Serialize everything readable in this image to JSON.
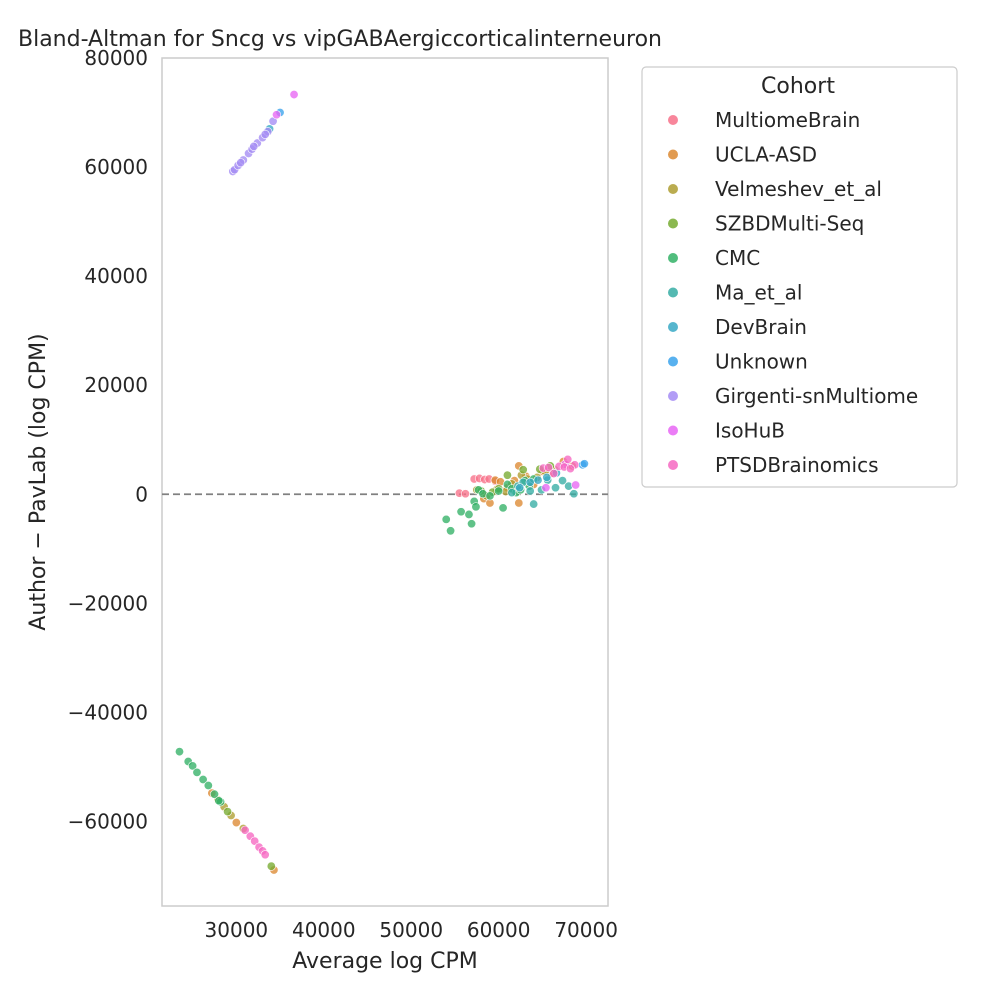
{
  "chart_data": {
    "type": "scatter",
    "title": "Bland-Altman for Sncg vs vipGABAergiccorticalinterneuron",
    "xlabel": "Average log CPM",
    "ylabel": "Author − PavLab (log CPM)",
    "xlim": [
      21500,
      72500
    ],
    "ylim": [
      -75500,
      80000
    ],
    "xticks": [
      30000,
      40000,
      50000,
      60000,
      70000
    ],
    "yticks": [
      -60000,
      -40000,
      -20000,
      0,
      20000,
      40000,
      60000,
      80000
    ],
    "xtick_labels": [
      "30000",
      "40000",
      "50000",
      "60000",
      "70000"
    ],
    "ytick_labels": [
      "−60000",
      "−40000",
      "−20000",
      "0",
      "20000",
      "40000",
      "60000",
      "80000"
    ],
    "reference_line": {
      "y": 0,
      "style": "dashed",
      "color": "#808080"
    },
    "grid": false,
    "legend": {
      "title": "Cohort",
      "placement": "outside-right"
    },
    "series": [
      {
        "name": "MultiomeBrain",
        "color": "#f77189",
        "points": [
          [
            55500,
            200
          ],
          [
            56200,
            100
          ],
          [
            57200,
            2800
          ],
          [
            57800,
            2900
          ],
          [
            58400,
            2700
          ],
          [
            58900,
            2800
          ],
          [
            59600,
            2400
          ],
          [
            58200,
            200
          ]
        ]
      },
      {
        "name": "UCLA-ASD",
        "color": "#dc8932",
        "points": [
          [
            58300,
            -800
          ],
          [
            59000,
            -1600
          ],
          [
            59600,
            2600
          ],
          [
            60200,
            2300
          ],
          [
            61000,
            1200
          ],
          [
            61800,
            2500
          ],
          [
            62300,
            5200
          ],
          [
            62300,
            -1600
          ],
          [
            63100,
            3300
          ],
          [
            64000,
            1800
          ],
          [
            65000,
            4200
          ],
          [
            66000,
            3800
          ],
          [
            67400,
            6000
          ],
          [
            68400,
            5200
          ],
          [
            27200,
            -54800
          ],
          [
            30000,
            -60200
          ],
          [
            34300,
            -68900
          ]
        ]
      },
      {
        "name": "Velmeshev_et_al",
        "color": "#ae9d31",
        "points": [
          [
            57500,
            800
          ],
          [
            58600,
            -300
          ],
          [
            59800,
            900
          ],
          [
            60800,
            500
          ],
          [
            61500,
            1900
          ],
          [
            62600,
            3500
          ],
          [
            63300,
            2800
          ],
          [
            64400,
            3100
          ],
          [
            65300,
            4200
          ],
          [
            66400,
            4500
          ],
          [
            27900,
            -56000
          ],
          [
            28600,
            -57300
          ],
          [
            29400,
            -58900
          ],
          [
            30800,
            -61300
          ]
        ]
      },
      {
        "name": "SZBDMulti-Seq",
        "color": "#77ab31",
        "points": [
          [
            58000,
            600
          ],
          [
            59300,
            400
          ],
          [
            60000,
            1000
          ],
          [
            61000,
            3500
          ],
          [
            61800,
            600
          ],
          [
            62800,
            4500
          ],
          [
            63500,
            2000
          ],
          [
            64700,
            4600
          ],
          [
            65900,
            5200
          ],
          [
            29000,
            -58200
          ],
          [
            34000,
            -68200
          ]
        ]
      },
      {
        "name": "CMC",
        "color": "#33b166",
        "points": [
          [
            54000,
            -4600
          ],
          [
            54500,
            -6700
          ],
          [
            55700,
            -3200
          ],
          [
            56600,
            -3700
          ],
          [
            56900,
            -5400
          ],
          [
            57200,
            -1300
          ],
          [
            57400,
            -2300
          ],
          [
            57700,
            800
          ],
          [
            58200,
            100
          ],
          [
            59000,
            -300
          ],
          [
            60000,
            600
          ],
          [
            60500,
            -2500
          ],
          [
            61000,
            1800
          ],
          [
            61500,
            1000
          ],
          [
            62000,
            300
          ],
          [
            62500,
            800
          ],
          [
            63000,
            2500
          ],
          [
            63500,
            1500
          ],
          [
            64000,
            2800
          ],
          [
            23500,
            -47200
          ],
          [
            24500,
            -49000
          ],
          [
            25000,
            -49800
          ],
          [
            25500,
            -51000
          ],
          [
            26200,
            -52300
          ],
          [
            26800,
            -53400
          ],
          [
            27500,
            -55000
          ],
          [
            28200,
            -56400
          ],
          [
            28000,
            -56200
          ]
        ]
      },
      {
        "name": "Ma_et_al",
        "color": "#36ada4",
        "points": [
          [
            61500,
            300
          ],
          [
            62200,
            1500
          ],
          [
            62800,
            2200
          ],
          [
            63600,
            600
          ],
          [
            64000,
            -1800
          ],
          [
            64900,
            800
          ],
          [
            65600,
            2600
          ],
          [
            66500,
            1200
          ],
          [
            67300,
            2500
          ],
          [
            68000,
            1500
          ],
          [
            68600,
            100
          ]
        ]
      },
      {
        "name": "DevBrain",
        "color": "#38a9c5",
        "points": [
          [
            62400,
            1200
          ],
          [
            63600,
            2200
          ],
          [
            64500,
            2600
          ],
          [
            65500,
            3100
          ],
          [
            66600,
            3900
          ],
          [
            33800,
            67000
          ]
        ]
      },
      {
        "name": "Unknown",
        "color": "#3ba3ec",
        "points": [
          [
            69600,
            5400
          ],
          [
            69800,
            5600
          ],
          [
            35000,
            70000
          ]
        ]
      },
      {
        "name": "Girgenti-snMultiome",
        "color": "#a48cf4",
        "points": [
          [
            29600,
            59200
          ],
          [
            29800,
            59500
          ],
          [
            30200,
            60300
          ],
          [
            30800,
            61300
          ],
          [
            31400,
            62500
          ],
          [
            31800,
            63300
          ],
          [
            32400,
            64400
          ],
          [
            33000,
            65400
          ],
          [
            33600,
            66500
          ],
          [
            34200,
            68400
          ],
          [
            30500,
            60800
          ],
          [
            32000,
            63800
          ],
          [
            33300,
            66000
          ]
        ]
      },
      {
        "name": "IsoHuB",
        "color": "#e866f4",
        "points": [
          [
            34600,
            69600
          ],
          [
            36600,
            73300
          ],
          [
            65400,
            1200
          ],
          [
            67600,
            5500
          ],
          [
            68800,
            1700
          ]
        ]
      },
      {
        "name": "PTSDBrainomics",
        "color": "#f668c2",
        "points": [
          [
            31000,
            -61600
          ],
          [
            31600,
            -62700
          ],
          [
            32100,
            -63600
          ],
          [
            32600,
            -64700
          ],
          [
            33000,
            -65400
          ],
          [
            33300,
            -66100
          ],
          [
            65100,
            4800
          ],
          [
            65700,
            4900
          ],
          [
            66300,
            3800
          ],
          [
            66900,
            5100
          ],
          [
            67500,
            5000
          ],
          [
            67900,
            6400
          ],
          [
            68700,
            5400
          ],
          [
            68200,
            4700
          ]
        ]
      }
    ]
  }
}
